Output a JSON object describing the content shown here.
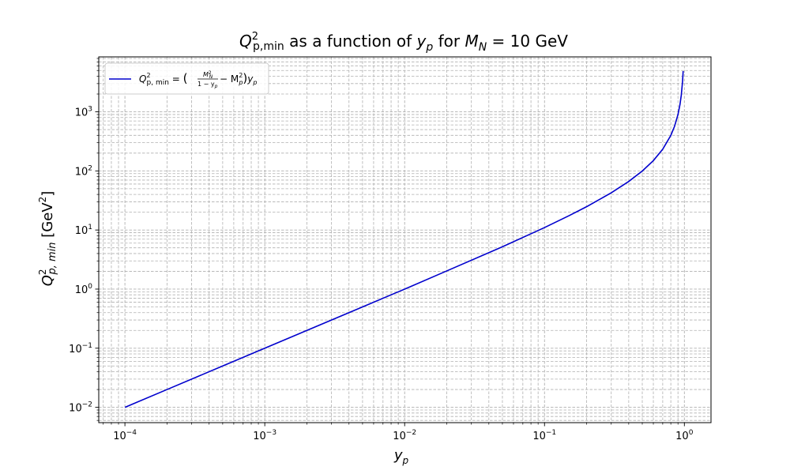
{
  "chart_data": {
    "type": "line",
    "title": {
      "q": "Q",
      "sup": "2",
      "sub": "p,min",
      "mid": " as a function of ",
      "y": "y",
      "ysub": "p",
      "for": " for ",
      "m": "M",
      "msub": "N",
      "eq": " = 10 GeV"
    },
    "xlabel": {
      "y": "y",
      "sub": "p"
    },
    "ylabel": {
      "q": "Q",
      "sup": "2",
      "sub": "p, min",
      "unit_open": " [GeV",
      "unit_sup": "2",
      "unit_close": "]"
    },
    "x_scale": "log",
    "y_scale": "log",
    "xlim": [
      6.5e-05,
      1.55
    ],
    "ylim": [
      0.0055,
      8500
    ],
    "x_ticks": [
      {
        "value": 0.0001,
        "base": "10",
        "exp": "−4"
      },
      {
        "value": 0.001,
        "base": "10",
        "exp": "−3"
      },
      {
        "value": 0.01,
        "base": "10",
        "exp": "−2"
      },
      {
        "value": 0.1,
        "base": "10",
        "exp": "−1"
      },
      {
        "value": 1,
        "base": "10",
        "exp": "0"
      }
    ],
    "y_ticks": [
      {
        "value": 0.01,
        "base": "10",
        "exp": "−2"
      },
      {
        "value": 0.1,
        "base": "10",
        "exp": "−1"
      },
      {
        "value": 1,
        "base": "10",
        "exp": "0"
      },
      {
        "value": 10,
        "base": "10",
        "exp": "1"
      },
      {
        "value": 100,
        "base": "10",
        "exp": "2"
      },
      {
        "value": 1000,
        "base": "10",
        "exp": "3"
      }
    ],
    "grid": "major and minor, dashed",
    "legend_position": "top-left",
    "series": [
      {
        "name": "Q²p,min = (M²N/(1−yp) − M²p) yp",
        "color": "#0000cd",
        "x": [
          0.0001,
          0.0002,
          0.0005,
          0.001,
          0.002,
          0.005,
          0.01,
          0.02,
          0.05,
          0.1,
          0.15,
          0.2,
          0.3,
          0.4,
          0.5,
          0.6,
          0.7,
          0.8,
          0.85,
          0.9,
          0.93,
          0.95,
          0.97,
          0.98
        ],
        "y": [
          0.01,
          0.02,
          0.05,
          0.1,
          0.2,
          0.5,
          1.0,
          2.03,
          5.2,
          11.0,
          17.5,
          24.8,
          42.6,
          66.3,
          99.5,
          149.4,
          232.6,
          399.2,
          565.8,
          899.2,
          1328,
          1899,
          3233,
          4899
        ]
      }
    ],
    "legend": {
      "q": "Q",
      "sup": "2",
      "sub": "p, min",
      "eq": " = ",
      "lparen": "(",
      "frac_num_m": "M",
      "frac_num_sup": "2",
      "frac_num_sub": "N",
      "frac_den": "1 − y",
      "frac_den_sub": "p",
      "minus": " − M",
      "mp_sup": "2",
      "mp_sub": "p",
      "rparen": ")",
      "tail_y": "y",
      "tail_sub": "p"
    }
  }
}
